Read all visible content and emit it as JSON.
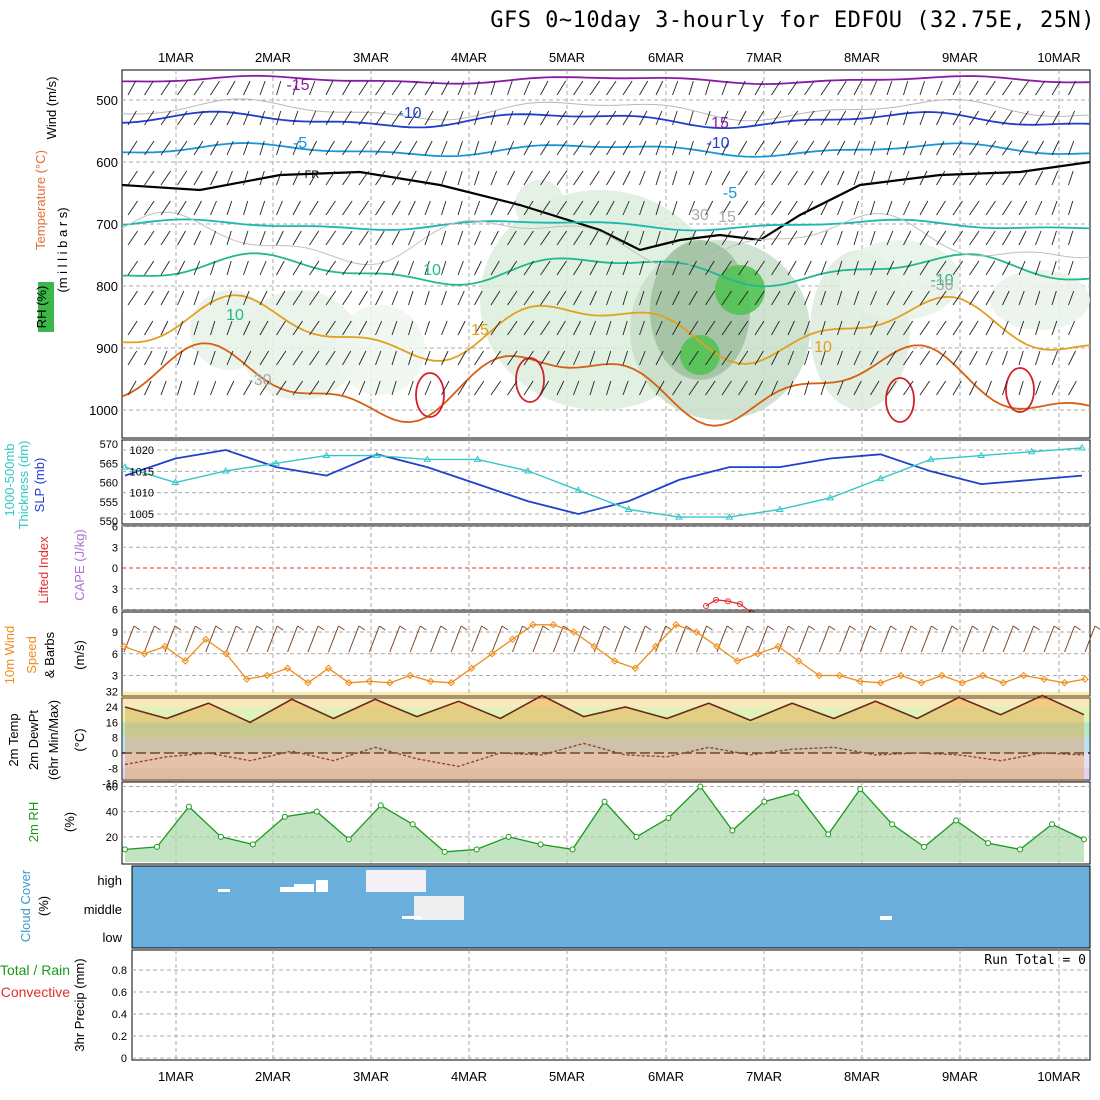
{
  "title": "GFS 0~10day 3-hourly for EDFOU (32.75E, 25N)",
  "colors": {
    "slp": "#1f3fcc",
    "thickness": "#33c7c7",
    "wind_speed": "#f08c1a",
    "barb": "#7a4a2a",
    "lifted_index": "#e03030",
    "rh": "#1a9a1a",
    "cloud_bg": "#6aaedc",
    "grid": "#999999"
  },
  "chart_data": [
    {
      "id": "upper",
      "type": "heatmap",
      "x": [
        "1MAR",
        "2MAR",
        "3MAR",
        "4MAR",
        "5MAR",
        "6MAR",
        "7MAR",
        "8MAR",
        "9MAR",
        "10MAR"
      ],
      "ylabel": "(m i l l i b a r s)",
      "side_labels": [
        "Wind (m/s)",
        "Temperature (°C)",
        "RH (%)"
      ],
      "yticks": [
        500,
        600,
        700,
        800,
        900,
        1000
      ],
      "ylim": [
        1040,
        455
      ],
      "contour_labels": [
        "-15",
        "-10",
        "-5",
        "FR",
        "10",
        "15",
        "-10",
        "-5",
        "15",
        "-10",
        "10",
        "10",
        "15",
        "-30",
        "-30",
        "30"
      ]
    },
    {
      "id": "slp_thickness",
      "type": "line",
      "side_labels": [
        "1000-500mb",
        "Thickness (dm)",
        "SLP (mb)"
      ],
      "left_ticks": [
        "570",
        "565",
        "560",
        "555",
        "550"
      ],
      "right_ticks": [
        "1020",
        "1015",
        "1010",
        "1005"
      ],
      "series": [
        {
          "name": "SLP (mb)",
          "values": [
            1014,
            1018,
            1020,
            1016,
            1014,
            1019,
            1016,
            1012,
            1008,
            1005,
            1008,
            1013,
            1016,
            1016,
            1018,
            1019,
            1015,
            1012,
            1013,
            1014
          ]
        },
        {
          "name": "1000-500mb Thickness (dm)",
          "values": [
            564,
            560,
            563,
            565,
            567,
            567,
            566,
            566,
            563,
            558,
            553,
            551,
            551,
            553,
            556,
            561,
            566,
            567,
            568,
            569
          ]
        }
      ]
    },
    {
      "id": "li_cape",
      "type": "line",
      "side_labels": [
        "Lifted Index",
        "CAPE (J/kg)"
      ],
      "yticks": [
        "6",
        "3",
        "0",
        "-3",
        "-6"
      ],
      "series": [
        {
          "name": "Lifted Index",
          "values": [
            5.5,
            4.6,
            4.8,
            5.2,
            6.5
          ]
        }
      ]
    },
    {
      "id": "wind10",
      "type": "line",
      "side_labels": [
        "10m Wind",
        "Speed",
        "& Barbs",
        "(m/s)"
      ],
      "yticks": [
        "9",
        "6",
        "3"
      ],
      "series": [
        {
          "name": "Speed",
          "values": [
            7,
            6,
            7,
            5,
            8,
            6,
            2.5,
            3,
            4,
            2,
            4,
            2,
            2.2,
            2,
            3,
            2.2,
            2,
            4,
            6,
            8,
            10,
            10,
            9,
            7,
            5,
            4,
            7,
            10,
            9,
            7,
            5,
            6,
            7,
            5,
            3,
            3,
            2.2,
            2,
            3,
            2,
            3,
            2,
            3,
            2,
            3,
            2.5,
            2,
            2.5
          ]
        }
      ]
    },
    {
      "id": "temp2m",
      "type": "area",
      "side_labels": [
        "2m Temp",
        "2m DewPt",
        "(6hr Min/Max)",
        "(°C)"
      ],
      "yticks": [
        "32",
        "24",
        "16",
        "8",
        "0",
        "-8",
        "-16"
      ],
      "series": [
        {
          "name": "2m Temp",
          "values": [
            24,
            18,
            26,
            16,
            28,
            18,
            28,
            19,
            27,
            18,
            30,
            19,
            24,
            18,
            26,
            17,
            26,
            18,
            27,
            18,
            29,
            20,
            30,
            20
          ]
        },
        {
          "name": "2m DewPt",
          "values": [
            -6,
            -2,
            0,
            -4,
            1,
            -4,
            3,
            -3,
            -7,
            0,
            -1,
            5,
            -1,
            -2,
            3,
            -1,
            2,
            3,
            -1,
            0,
            -1,
            -4,
            0,
            -1
          ]
        }
      ]
    },
    {
      "id": "rh2m",
      "type": "area",
      "side_labels": [
        "2m RH",
        "(%)"
      ],
      "yticks": [
        "60",
        "40",
        "20"
      ],
      "series": [
        {
          "name": "2m RH",
          "values": [
            10,
            12,
            44,
            20,
            14,
            36,
            40,
            18,
            45,
            30,
            8,
            10,
            20,
            14,
            10,
            48,
            20,
            35,
            60,
            25,
            48,
            55,
            22,
            58,
            30,
            12,
            33,
            15,
            10,
            30,
            18
          ]
        }
      ]
    },
    {
      "id": "cloud",
      "type": "heatmap",
      "side_labels": [
        "Cloud Cover",
        "(%)"
      ],
      "levels": [
        "high",
        "middle",
        "low"
      ]
    },
    {
      "id": "precip",
      "type": "bar",
      "side_labels": [
        "Total / Rain",
        "Convective",
        "3hr Precip (mm)"
      ],
      "yticks": [
        "0.8",
        "0.6",
        "0.4",
        "0.2",
        "0"
      ],
      "run_total": "Run Total = 0",
      "values": []
    }
  ]
}
